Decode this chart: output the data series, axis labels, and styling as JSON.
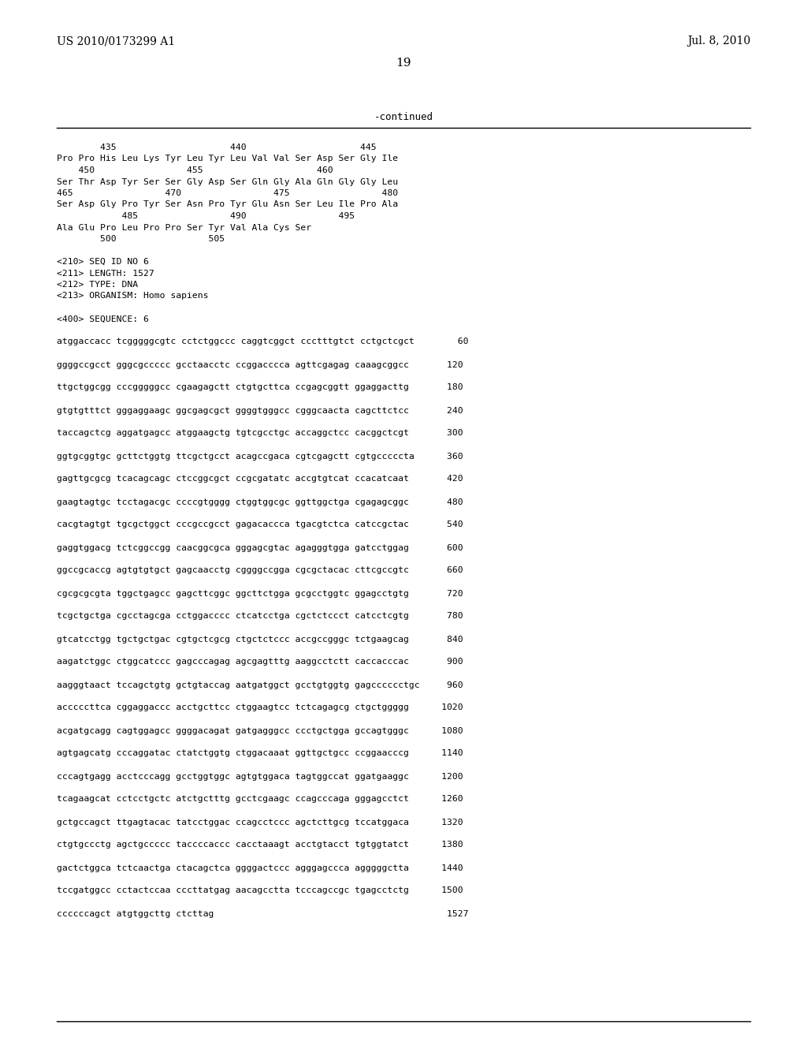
{
  "patent_number": "US 2010/0173299 A1",
  "date": "Jul. 8, 2010",
  "page_number": "19",
  "continued_label": "-continued",
  "background_color": "#ffffff",
  "text_color": "#000000",
  "content_lines": [
    {
      "text": "        435                     440                     445",
      "type": "number_line"
    },
    {
      "text": "Pro Pro His Leu Lys Tyr Leu Tyr Leu Val Val Ser Asp Ser Gly Ile",
      "type": "aa_line"
    },
    {
      "text": "    450                 455                     460",
      "type": "number_line"
    },
    {
      "text": "Ser Thr Asp Tyr Ser Ser Gly Asp Ser Gln Gly Ala Gln Gly Gly Leu",
      "type": "aa_line"
    },
    {
      "text": "465                 470                 475                 480",
      "type": "number_line"
    },
    {
      "text": "Ser Asp Gly Pro Tyr Ser Asn Pro Tyr Glu Asn Ser Leu Ile Pro Ala",
      "type": "aa_line"
    },
    {
      "text": "            485                 490                 495",
      "type": "number_line"
    },
    {
      "text": "Ala Glu Pro Leu Pro Pro Ser Tyr Val Ala Cys Ser",
      "type": "aa_line"
    },
    {
      "text": "        500                 505",
      "type": "number_line"
    },
    {
      "text": "",
      "type": "blank"
    },
    {
      "text": "<210> SEQ ID NO 6",
      "type": "meta"
    },
    {
      "text": "<211> LENGTH: 1527",
      "type": "meta"
    },
    {
      "text": "<212> TYPE: DNA",
      "type": "meta"
    },
    {
      "text": "<213> ORGANISM: Homo sapiens",
      "type": "meta"
    },
    {
      "text": "",
      "type": "blank"
    },
    {
      "text": "<400> SEQUENCE: 6",
      "type": "meta"
    },
    {
      "text": "",
      "type": "blank"
    },
    {
      "text": "atggaccacc tcgggggcgtc cctctggccc caggtcggct ccctttgtct cctgctcgct        60",
      "type": "dna"
    },
    {
      "text": "",
      "type": "blank"
    },
    {
      "text": "ggggccgcct gggcgccccc gcctaacctc ccggacccca agttcgagag caaagcggcc       120",
      "type": "dna"
    },
    {
      "text": "",
      "type": "blank"
    },
    {
      "text": "ttgctggcgg cccgggggcc cgaagagctt ctgtgcttca ccgagcggtt ggaggacttg       180",
      "type": "dna"
    },
    {
      "text": "",
      "type": "blank"
    },
    {
      "text": "gtgtgtttct gggaggaagc ggcgagcgct ggggtgggcc cgggcaacta cagcttctcc       240",
      "type": "dna"
    },
    {
      "text": "",
      "type": "blank"
    },
    {
      "text": "taccagctcg aggatgagcc atggaagctg tgtcgcctgc accaggctcc cacggctcgt       300",
      "type": "dna"
    },
    {
      "text": "",
      "type": "blank"
    },
    {
      "text": "ggtgcggtgc gcttctggtg ttcgctgcct acagccgaca cgtcgagctt cgtgcccccta      360",
      "type": "dna"
    },
    {
      "text": "",
      "type": "blank"
    },
    {
      "text": "gagttgcgcg tcacagcagc ctccggcgct ccgcgatatc accgtgtcat ccacatcaat       420",
      "type": "dna"
    },
    {
      "text": "",
      "type": "blank"
    },
    {
      "text": "gaagtagtgc tcctagacgc ccccgtgggg ctggtggcgc ggttggctga cgagagcggc       480",
      "type": "dna"
    },
    {
      "text": "",
      "type": "blank"
    },
    {
      "text": "cacgtagtgt tgcgctggct cccgccgcct gagacaccca tgacgtctca catccgctac       540",
      "type": "dna"
    },
    {
      "text": "",
      "type": "blank"
    },
    {
      "text": "gaggtggacg tctcggccgg caacggcgca gggagcgtac agagggtgga gatcctggag       600",
      "type": "dna"
    },
    {
      "text": "",
      "type": "blank"
    },
    {
      "text": "ggccgcaccg agtgtgtgct gagcaacctg cggggccgga cgcgctacac cttcgccgtc       660",
      "type": "dna"
    },
    {
      "text": "",
      "type": "blank"
    },
    {
      "text": "cgcgcgcgta tggctgagcc gagcttcggc ggcttctgga gcgcctggtc ggagcctgtg       720",
      "type": "dna"
    },
    {
      "text": "",
      "type": "blank"
    },
    {
      "text": "tcgctgctga cgcctagcga cctggacccc ctcatcctga cgctctccct catcctcgtg       780",
      "type": "dna"
    },
    {
      "text": "",
      "type": "blank"
    },
    {
      "text": "gtcatcctgg tgctgctgac cgtgctcgcg ctgctctccc accgccgggc tctgaagcag       840",
      "type": "dna"
    },
    {
      "text": "",
      "type": "blank"
    },
    {
      "text": "aagatctggc ctggcatccc gagcccagag agcgagtttg aaggcctctt caccacccac       900",
      "type": "dna"
    },
    {
      "text": "",
      "type": "blank"
    },
    {
      "text": "aagggtaact tccagctgtg gctgtaccag aatgatggct gcctgtggtg gagcccccctgc     960",
      "type": "dna"
    },
    {
      "text": "",
      "type": "blank"
    },
    {
      "text": "acccccttca cggaggaccc acctgcttcc ctggaagtcc tctcagagcg ctgctggggg      1020",
      "type": "dna"
    },
    {
      "text": "",
      "type": "blank"
    },
    {
      "text": "acgatgcagg cagtggagcc ggggacagat gatgagggcc ccctgctgga gccagtgggc      1080",
      "type": "dna"
    },
    {
      "text": "",
      "type": "blank"
    },
    {
      "text": "agtgagcatg cccaggatac ctatctggtg ctggacaaat ggttgctgcc ccggaacccg      1140",
      "type": "dna"
    },
    {
      "text": "",
      "type": "blank"
    },
    {
      "text": "cccagtgagg acctcccagg gcctggtggc agtgtggaca tagtggccat ggatgaaggc      1200",
      "type": "dna"
    },
    {
      "text": "",
      "type": "blank"
    },
    {
      "text": "tcagaagcat cctcctgctc atctgctttg gcctcgaagc ccagcccaga gggagcctct      1260",
      "type": "dna"
    },
    {
      "text": "",
      "type": "blank"
    },
    {
      "text": "gctgccagct ttgagtacac tatcctggac ccagcctccc agctcttgcg tccatggaca      1320",
      "type": "dna"
    },
    {
      "text": "",
      "type": "blank"
    },
    {
      "text": "ctgtgccctg agctgccccc taccccaccc cacctaaagt acctgtacct tgtggtatct      1380",
      "type": "dna"
    },
    {
      "text": "",
      "type": "blank"
    },
    {
      "text": "gactctggca tctcaactga ctacagctca ggggactccc agggagccca agggggctta      1440",
      "type": "dna"
    },
    {
      "text": "",
      "type": "blank"
    },
    {
      "text": "tccgatggcc cctactccaa cccttatgag aacagcctta tcccagccgc tgagcctctg      1500",
      "type": "dna"
    },
    {
      "text": "",
      "type": "blank"
    },
    {
      "text": "ccccccagct atgtggcttg ctcttag                                           1527",
      "type": "dna"
    }
  ]
}
